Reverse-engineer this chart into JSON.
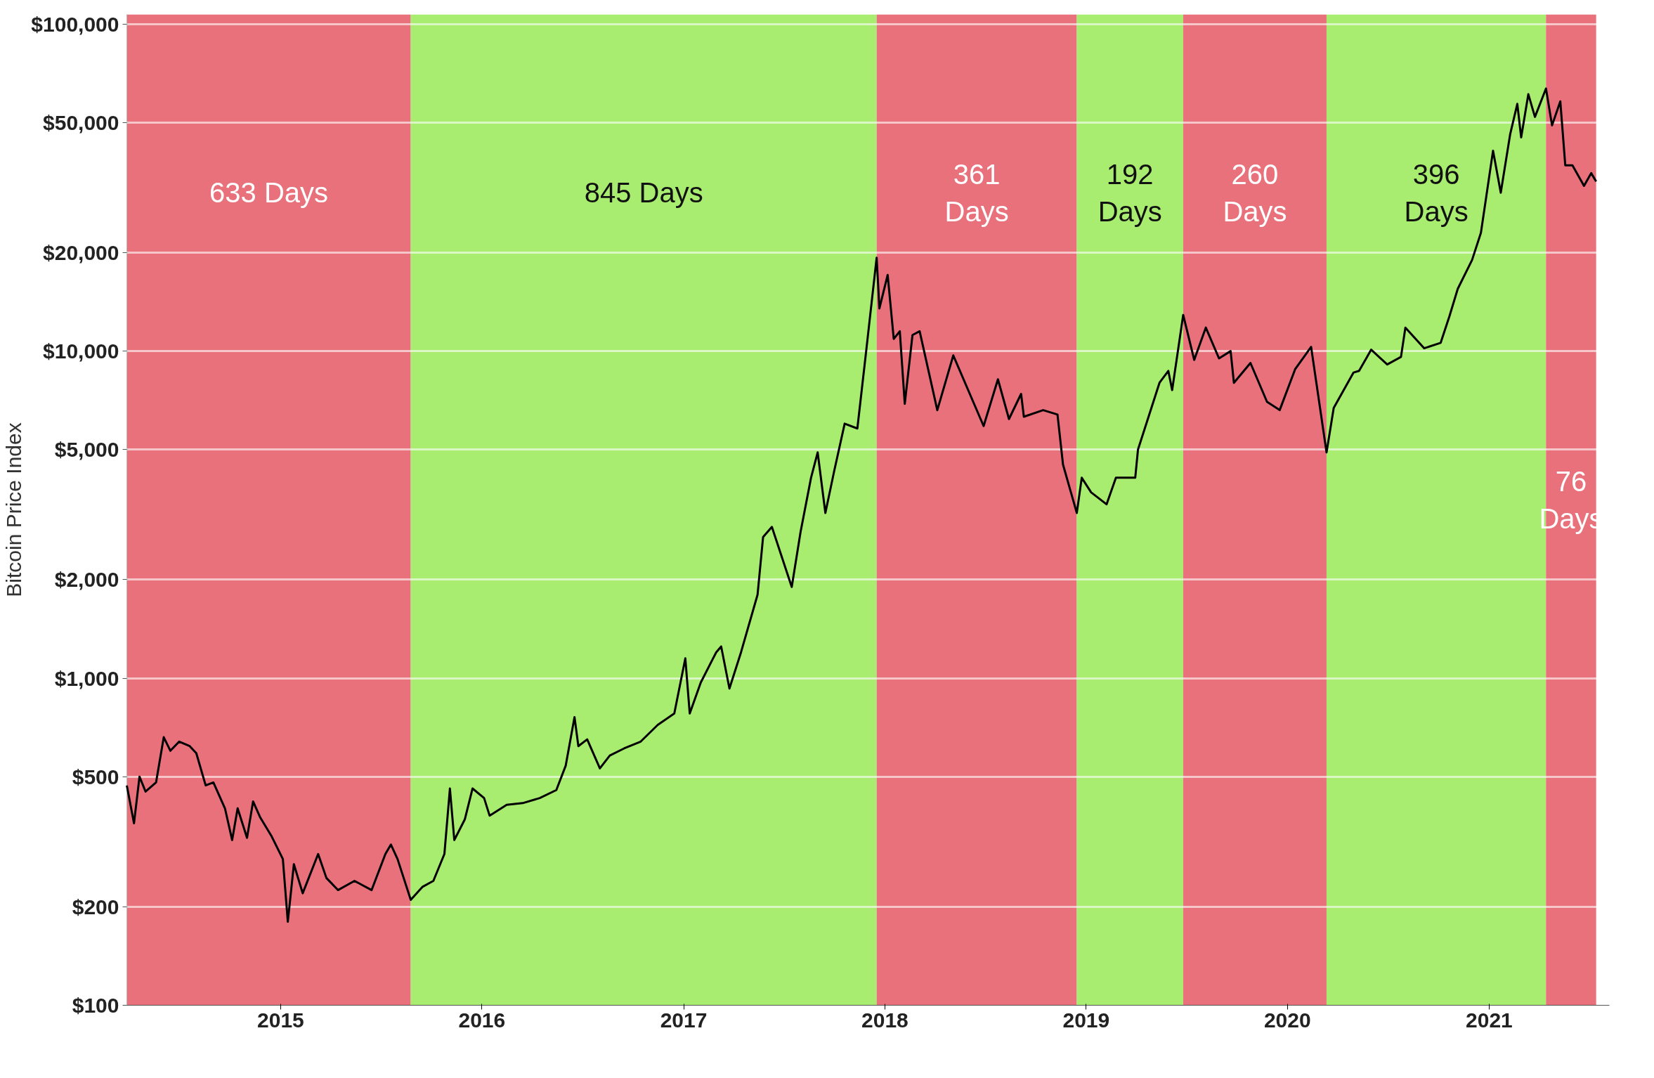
{
  "chart_data": {
    "type": "line",
    "ylabel": "Bitcoin Price Index",
    "log": true,
    "grid": "y",
    "line_style": "solid",
    "marker": "none",
    "xlim": [
      "2014-03-28",
      "2021-08-07"
    ],
    "ylim": [
      100,
      107000
    ],
    "xticks": [
      {
        "value": "2015-01-01",
        "label": "2015"
      },
      {
        "value": "2016-01-01",
        "label": "2016"
      },
      {
        "value": "2017-01-01",
        "label": "2017"
      },
      {
        "value": "2018-01-01",
        "label": "2018"
      },
      {
        "value": "2019-01-01",
        "label": "2019"
      },
      {
        "value": "2020-01-01",
        "label": "2020"
      },
      {
        "value": "2021-01-01",
        "label": "2021"
      }
    ],
    "yticks": [
      {
        "value": 100,
        "label": "$100"
      },
      {
        "value": 200,
        "label": "$200"
      },
      {
        "value": 500,
        "label": "$500"
      },
      {
        "value": 1000,
        "label": "$1,000"
      },
      {
        "value": 2000,
        "label": "$2,000"
      },
      {
        "value": 5000,
        "label": "$5,000"
      },
      {
        "value": 10000,
        "label": "$10,000"
      },
      {
        "value": 20000,
        "label": "$20,000"
      },
      {
        "value": 50000,
        "label": "$50,000"
      },
      {
        "value": 100000,
        "label": "$100,000"
      }
    ],
    "bands": [
      {
        "axis": "x",
        "from": "2014-03-28",
        "to": "2015-08-25",
        "label": "633 Days",
        "color": "#e8717b"
      },
      {
        "axis": "x",
        "from": "2015-08-25",
        "to": "2017-12-17",
        "label": "845 Days",
        "color": "#a8ec70"
      },
      {
        "axis": "x",
        "from": "2017-12-17",
        "to": "2018-12-15",
        "label": "361 Days",
        "color": "#e8717b"
      },
      {
        "axis": "x",
        "from": "2018-12-15",
        "to": "2019-06-26",
        "label": "192 Days",
        "color": "#a8ec70"
      },
      {
        "axis": "x",
        "from": "2019-06-26",
        "to": "2020-03-12",
        "label": "260 Days",
        "color": "#e8717b"
      },
      {
        "axis": "x",
        "from": "2020-03-12",
        "to": "2021-04-14",
        "label": "396 Days",
        "color": "#a8ec70"
      },
      {
        "axis": "x",
        "from": "2021-04-14",
        "to": "2021-07-14",
        "label": "76 Days",
        "color": "#e8717b"
      }
    ],
    "series": [
      {
        "color": "#000000",
        "x": [
          "2014-03-28",
          "2014-04-10",
          "2014-04-20",
          "2014-05-01",
          "2014-05-20",
          "2014-06-03",
          "2014-06-15",
          "2014-07-01",
          "2014-07-20",
          "2014-08-01",
          "2014-08-18",
          "2014-09-01",
          "2014-09-22",
          "2014-10-05",
          "2014-10-15",
          "2014-11-01",
          "2014-11-12",
          "2014-11-25",
          "2014-12-15",
          "2015-01-05",
          "2015-01-14",
          "2015-01-25",
          "2015-02-10",
          "2015-03-10",
          "2015-03-25",
          "2015-04-15",
          "2015-05-15",
          "2015-06-15",
          "2015-07-10",
          "2015-07-20",
          "2015-08-01",
          "2015-08-25",
          "2015-09-15",
          "2015-10-05",
          "2015-10-25",
          "2015-11-04",
          "2015-11-12",
          "2015-12-01",
          "2015-12-15",
          "2016-01-05",
          "2016-01-15",
          "2016-02-15",
          "2016-03-15",
          "2016-04-15",
          "2016-05-15",
          "2016-06-01",
          "2016-06-17",
          "2016-06-24",
          "2016-07-10",
          "2016-08-02",
          "2016-08-20",
          "2016-09-15",
          "2016-10-15",
          "2016-11-15",
          "2016-12-15",
          "2017-01-04",
          "2017-01-12",
          "2017-02-01",
          "2017-03-01",
          "2017-03-10",
          "2017-03-25",
          "2017-04-15",
          "2017-05-15",
          "2017-05-25",
          "2017-06-10",
          "2017-07-16",
          "2017-08-01",
          "2017-08-20",
          "2017-09-01",
          "2017-09-15",
          "2017-10-01",
          "2017-10-20",
          "2017-11-12",
          "2017-11-28",
          "2017-12-17",
          "2017-12-22",
          "2018-01-06",
          "2018-01-17",
          "2018-01-28",
          "2018-02-06",
          "2018-02-20",
          "2018-03-05",
          "2018-04-06",
          "2018-05-05",
          "2018-06-29",
          "2018-07-25",
          "2018-08-14",
          "2018-09-05",
          "2018-09-10",
          "2018-10-15",
          "2018-11-10",
          "2018-11-20",
          "2018-12-15",
          "2018-12-24",
          "2019-01-10",
          "2019-02-07",
          "2019-02-24",
          "2019-03-31",
          "2019-04-05",
          "2019-05-14",
          "2019-05-30",
          "2019-06-06",
          "2019-06-26",
          "2019-07-16",
          "2019-08-06",
          "2019-08-30",
          "2019-09-20",
          "2019-09-26",
          "2019-10-26",
          "2019-11-25",
          "2019-12-18",
          "2020-01-15",
          "2020-02-13",
          "2020-03-12",
          "2020-03-25",
          "2020-04-30",
          "2020-05-10",
          "2020-06-01",
          "2020-06-30",
          "2020-07-25",
          "2020-08-02",
          "2020-09-05",
          "2020-10-05",
          "2020-10-21",
          "2020-11-05",
          "2020-12-01",
          "2020-12-17",
          "2021-01-08",
          "2021-01-22",
          "2021-02-08",
          "2021-02-21",
          "2021-02-28",
          "2021-03-13",
          "2021-03-25",
          "2021-04-14",
          "2021-04-25",
          "2021-05-10",
          "2021-05-19",
          "2021-06-01",
          "2021-06-22",
          "2021-07-05",
          "2021-07-14"
        ],
        "values": [
          470,
          360,
          500,
          450,
          480,
          660,
          600,
          640,
          620,
          590,
          470,
          480,
          400,
          320,
          400,
          325,
          420,
          375,
          330,
          280,
          180,
          270,
          220,
          290,
          245,
          225,
          240,
          225,
          290,
          310,
          280,
          210,
          230,
          240,
          290,
          460,
          320,
          370,
          460,
          430,
          380,
          410,
          415,
          430,
          455,
          540,
          760,
          620,
          650,
          530,
          580,
          610,
          640,
          720,
          780,
          1150,
          780,
          970,
          1200,
          1250,
          930,
          1200,
          1800,
          2700,
          2900,
          1900,
          2800,
          4100,
          4900,
          3200,
          4300,
          6000,
          5800,
          10000,
          19300,
          13500,
          17100,
          10900,
          11500,
          6900,
          11200,
          11500,
          6600,
          9700,
          5900,
          8200,
          6200,
          7400,
          6300,
          6600,
          6400,
          4500,
          3200,
          4100,
          3700,
          3400,
          4100,
          4100,
          5000,
          8000,
          8700,
          7600,
          12900,
          9400,
          11800,
          9500,
          10000,
          8000,
          9200,
          7000,
          6600,
          8800,
          10300,
          4900,
          6700,
          8600,
          8700,
          10100,
          9100,
          9600,
          11800,
          10200,
          10600,
          12800,
          15500,
          19000,
          23000,
          41000,
          30500,
          46000,
          57000,
          45000,
          61000,
          52000,
          63500,
          49000,
          58000,
          37000,
          37000,
          32000,
          35000,
          33000
        ]
      }
    ]
  }
}
